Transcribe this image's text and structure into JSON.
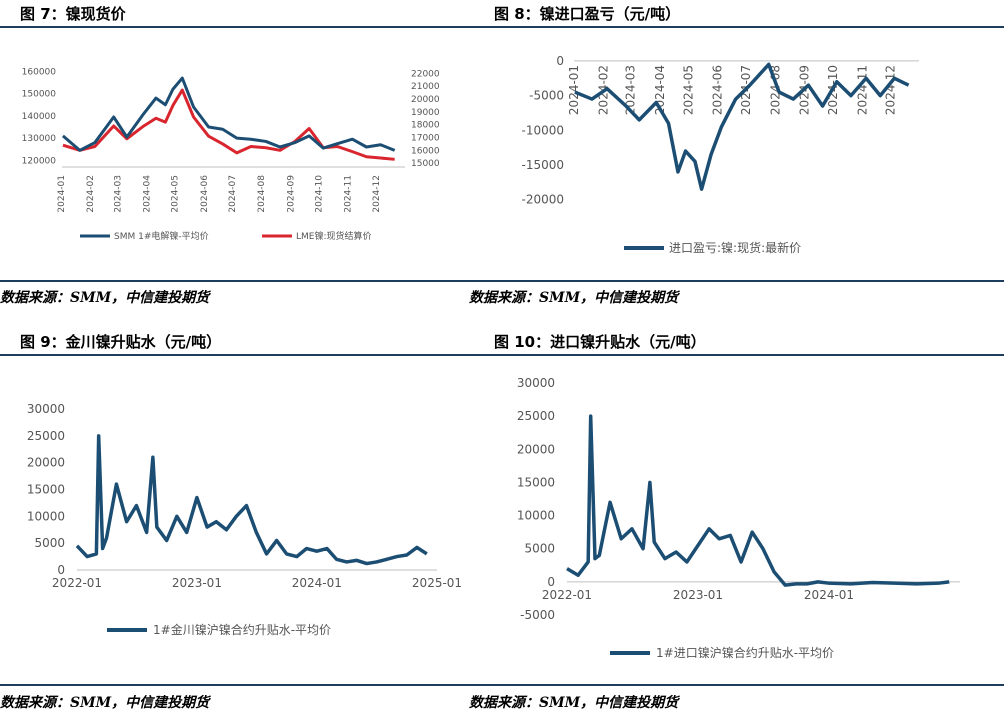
{
  "panels": [
    {
      "title": "图 7：镍现货价",
      "source": "数据来源：SMM，中信建投期货"
    },
    {
      "title": "图 8：镍进口盈亏（元/吨）",
      "source": "数据来源：SMM，中信建投期货"
    },
    {
      "title": "图 9：金川镍升贴水（元/吨）",
      "source": "数据来源：SMM，中信建投期货"
    },
    {
      "title": "图 10：进口镍升贴水（元/吨）",
      "source": "数据来源：SMM，中信建投期货"
    }
  ],
  "colors": {
    "navy": "#1c4e73",
    "red": "#d9262e",
    "rule": "#1f3d5c"
  },
  "chart_data": [
    {
      "type": "line",
      "x": [
        "2024-01-02",
        "2024-01-20",
        "2024-02-05",
        "2024-02-25",
        "2024-03-10",
        "2024-03-28",
        "2024-04-10",
        "2024-04-20",
        "2024-04-28",
        "2024-05-08",
        "2024-05-20",
        "2024-06-05",
        "2024-06-20",
        "2024-07-05",
        "2024-07-20",
        "2024-08-05",
        "2024-08-20",
        "2024-09-05",
        "2024-09-20",
        "2024-10-05",
        "2024-10-20",
        "2024-11-05",
        "2024-11-20",
        "2024-12-05",
        "2024-12-20"
      ],
      "xticks": [
        "2024-01",
        "2024-02",
        "2024-03",
        "2024-04",
        "2024-05",
        "2024-06",
        "2024-07",
        "2024-08",
        "2024-09",
        "2024-10",
        "2024-11",
        "2024-12"
      ],
      "series": [
        {
          "name": "SMM 1#电解镍-平均价",
          "axis": "left",
          "values": [
            131000,
            124500,
            128000,
            139500,
            130500,
            141000,
            148000,
            145000,
            152000,
            157000,
            144000,
            135000,
            134000,
            130000,
            129500,
            128500,
            126000,
            128000,
            131000,
            125500,
            127500,
            129500,
            126000,
            127000,
            124500
          ]
        },
        {
          "name": "LME镍:现货结算价",
          "axis": "right",
          "values": [
            16400,
            16000,
            16300,
            17900,
            16900,
            17900,
            18500,
            18200,
            19500,
            20700,
            18600,
            17100,
            16500,
            15800,
            16300,
            16200,
            16000,
            16700,
            17700,
            16200,
            16300,
            15900,
            15500,
            15400,
            15300
          ]
        }
      ],
      "yticks_left": [
        120000,
        130000,
        140000,
        150000,
        160000
      ],
      "ylim_left": [
        117000,
        162000
      ],
      "yticks_right": [
        15000,
        16000,
        17000,
        18000,
        19000,
        20000,
        21000,
        22000
      ],
      "ylim_right": [
        14700,
        22500
      ]
    },
    {
      "type": "line",
      "x": [
        "2024-01-02",
        "2024-01-20",
        "2024-02-05",
        "2024-02-25",
        "2024-03-10",
        "2024-03-28",
        "2024-04-10",
        "2024-04-20",
        "2024-04-28",
        "2024-05-08",
        "2024-05-15",
        "2024-05-25",
        "2024-06-05",
        "2024-06-20",
        "2024-07-05",
        "2024-07-15",
        "2024-07-25",
        "2024-08-05",
        "2024-08-20",
        "2024-09-05",
        "2024-09-20",
        "2024-10-05",
        "2024-10-20",
        "2024-11-05",
        "2024-11-20",
        "2024-12-05",
        "2024-12-20"
      ],
      "xticks": [
        "2024-01",
        "2024-02",
        "2024-03",
        "2024-04",
        "2024-05",
        "2024-06",
        "2024-07",
        "2024-08",
        "2024-09",
        "2024-10",
        "2024-11",
        "2024-12"
      ],
      "series": [
        {
          "name": "进口盈亏:镍:现货:最新价",
          "values": [
            -4500,
            -5500,
            -4000,
            -6500,
            -8500,
            -6000,
            -9000,
            -16000,
            -13000,
            -14500,
            -18500,
            -13500,
            -9500,
            -5500,
            -3500,
            -2000,
            -500,
            -4500,
            -5500,
            -3500,
            -6500,
            -3000,
            -5000,
            -2500,
            -5000,
            -2500,
            -3500
          ]
        }
      ],
      "yticks": [
        0,
        -5000,
        -10000,
        -15000,
        -20000
      ],
      "ylim": [
        -21500,
        1000
      ]
    },
    {
      "type": "line",
      "x": [
        "2022-01",
        "2022-02",
        "2022-03",
        "2022-03-08",
        "2022-03-20",
        "2022-04",
        "2022-05",
        "2022-06",
        "2022-07",
        "2022-08",
        "2022-08-20",
        "2022-09",
        "2022-10",
        "2022-11",
        "2022-12",
        "2023-01",
        "2023-02",
        "2023-03",
        "2023-04",
        "2023-05",
        "2023-06",
        "2023-07",
        "2023-08",
        "2023-09",
        "2023-10",
        "2023-11",
        "2023-12",
        "2024-01",
        "2024-02",
        "2024-03",
        "2024-04",
        "2024-05",
        "2024-06",
        "2024-07",
        "2024-08",
        "2024-09",
        "2024-10",
        "2024-11",
        "2024-12"
      ],
      "xticks": [
        "2022-01",
        "2023-01",
        "2024-01",
        "2025-01"
      ],
      "series": [
        {
          "name": "1#金川镍沪镍合约升贴水-平均价",
          "values": [
            4500,
            2500,
            3000,
            25000,
            4000,
            6000,
            16000,
            9000,
            12000,
            7000,
            21000,
            8000,
            5500,
            10000,
            7000,
            13500,
            8000,
            9000,
            7500,
            10000,
            12000,
            7000,
            3000,
            5500,
            3000,
            2500,
            4000,
            3500,
            4000,
            2000,
            1500,
            1800,
            1200,
            1500,
            2000,
            2500,
            2800,
            4200,
            3000
          ]
        }
      ],
      "yticks": [
        0,
        5000,
        10000,
        15000,
        20000,
        25000,
        30000
      ],
      "ylim": [
        0,
        30000
      ]
    },
    {
      "type": "line",
      "x": [
        "2022-01",
        "2022-02",
        "2022-03",
        "2022-03-08",
        "2022-03-20",
        "2022-04",
        "2022-05",
        "2022-06",
        "2022-07",
        "2022-08",
        "2022-08-20",
        "2022-09",
        "2022-10",
        "2022-11",
        "2022-12",
        "2023-01",
        "2023-02",
        "2023-03",
        "2023-04",
        "2023-05",
        "2023-06",
        "2023-07",
        "2023-08",
        "2023-09",
        "2023-10",
        "2023-11",
        "2023-12",
        "2024-01",
        "2024-03",
        "2024-05",
        "2024-07",
        "2024-09",
        "2024-11",
        "2024-12"
      ],
      "xticks": [
        "2022-01",
        "2023-01",
        "2024-01"
      ],
      "series": [
        {
          "name": "1#进口镍沪镍合约升贴水-平均价",
          "values": [
            2000,
            1000,
            3000,
            25000,
            3500,
            4000,
            12000,
            6500,
            8000,
            5000,
            15000,
            6000,
            3500,
            4500,
            3000,
            5500,
            8000,
            6500,
            7000,
            3000,
            7500,
            5000,
            1500,
            -500,
            -300,
            -300,
            0,
            -200,
            -300,
            -100,
            -200,
            -300,
            -200,
            0
          ]
        }
      ],
      "yticks": [
        -5000,
        0,
        5000,
        10000,
        15000,
        20000,
        25000,
        30000
      ],
      "ylim": [
        -5000,
        30000
      ]
    }
  ]
}
